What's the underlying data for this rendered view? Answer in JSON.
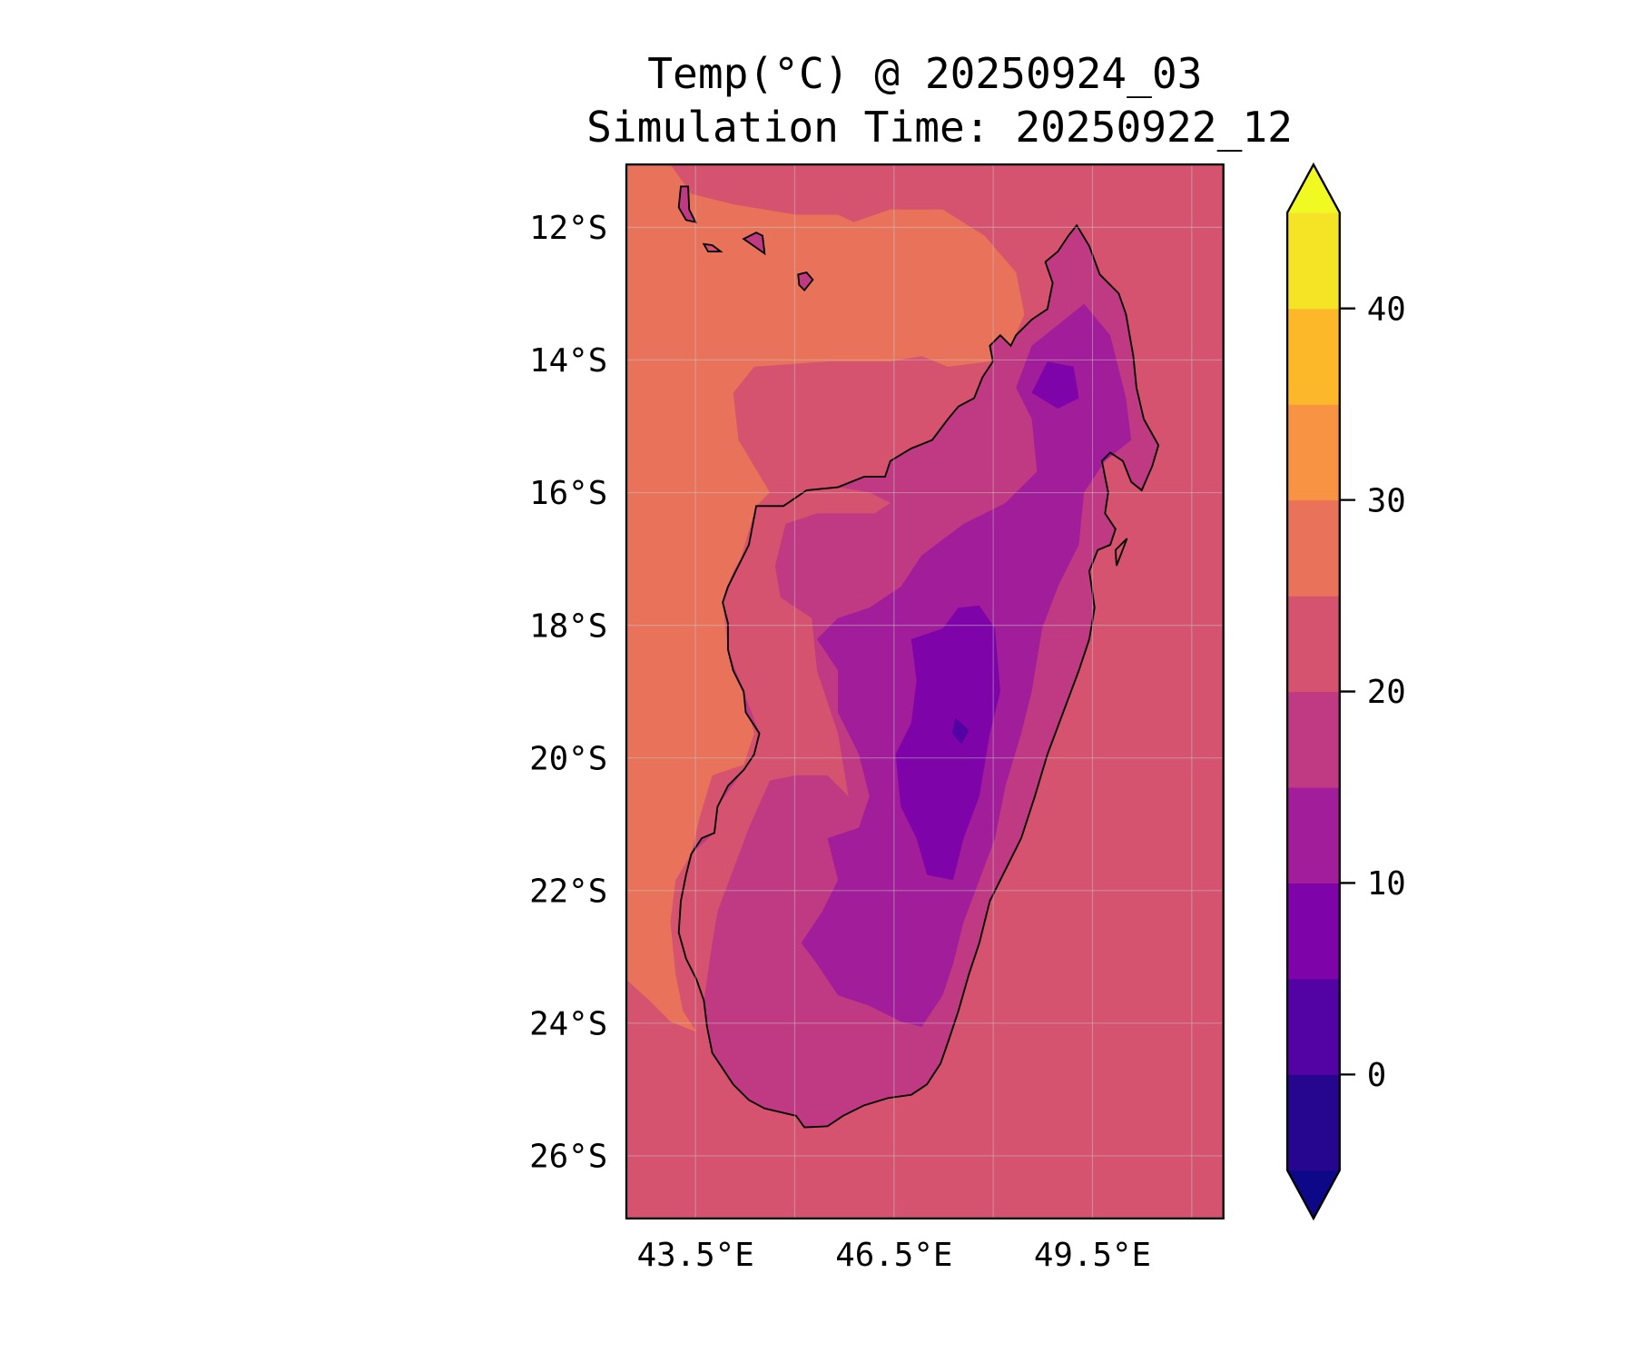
{
  "chart_data": {
    "type": "heatmap",
    "title": [
      "Temp(°C) @ 20250924_03",
      "Simulation Time: 20250922_12"
    ],
    "xlabel": "",
    "ylabel": "",
    "lon_range": [
      42.46,
      51.5
    ],
    "lat_range": [
      -26.96,
      -11.05
    ],
    "lon_ticks": [
      {
        "value": 43.5,
        "label": "43.5°E"
      },
      {
        "value": 46.5,
        "label": "46.5°E"
      },
      {
        "value": 49.5,
        "label": "49.5°E"
      }
    ],
    "lat_ticks": [
      {
        "value": 12,
        "label": "12°S"
      },
      {
        "value": 14,
        "label": "14°S"
      },
      {
        "value": 16,
        "label": "16°S"
      },
      {
        "value": 18,
        "label": "18°S"
      },
      {
        "value": 20,
        "label": "20°S"
      },
      {
        "value": 22,
        "label": "22°S"
      },
      {
        "value": 24,
        "label": "24°S"
      },
      {
        "value": 26,
        "label": "26°S"
      }
    ],
    "grid_lon": [
      43.5,
      45,
      46.5,
      48,
      49.5,
      51
    ],
    "grid_lat": [
      12,
      14,
      16,
      18,
      20,
      22,
      24,
      26
    ],
    "grid": true,
    "colorbar": {
      "levels": [
        -5,
        0,
        5,
        10,
        15,
        20,
        25,
        30,
        35,
        40,
        45
      ],
      "colors": [
        "#26068f",
        "#5302a3",
        "#7e03a8",
        "#a21d9a",
        "#c03a83",
        "#d5536f",
        "#e8735a",
        "#f79342",
        "#fdb82a",
        "#f5e426"
      ],
      "under_color": "#0d0887",
      "over_color": "#f0f921",
      "ticks": [
        {
          "value": 0,
          "label": "0"
        },
        {
          "value": 10,
          "label": "10"
        },
        {
          "value": 20,
          "label": "20"
        },
        {
          "value": 30,
          "label": "30"
        },
        {
          "value": 40,
          "label": "40"
        }
      ],
      "extend": "both",
      "placement": "right"
    },
    "field_summary": {
      "ocean_east_band": "20-25",
      "ocean_west_band": "25-30",
      "land_coast_band": "15-25",
      "highland_band": "5-15"
    }
  }
}
